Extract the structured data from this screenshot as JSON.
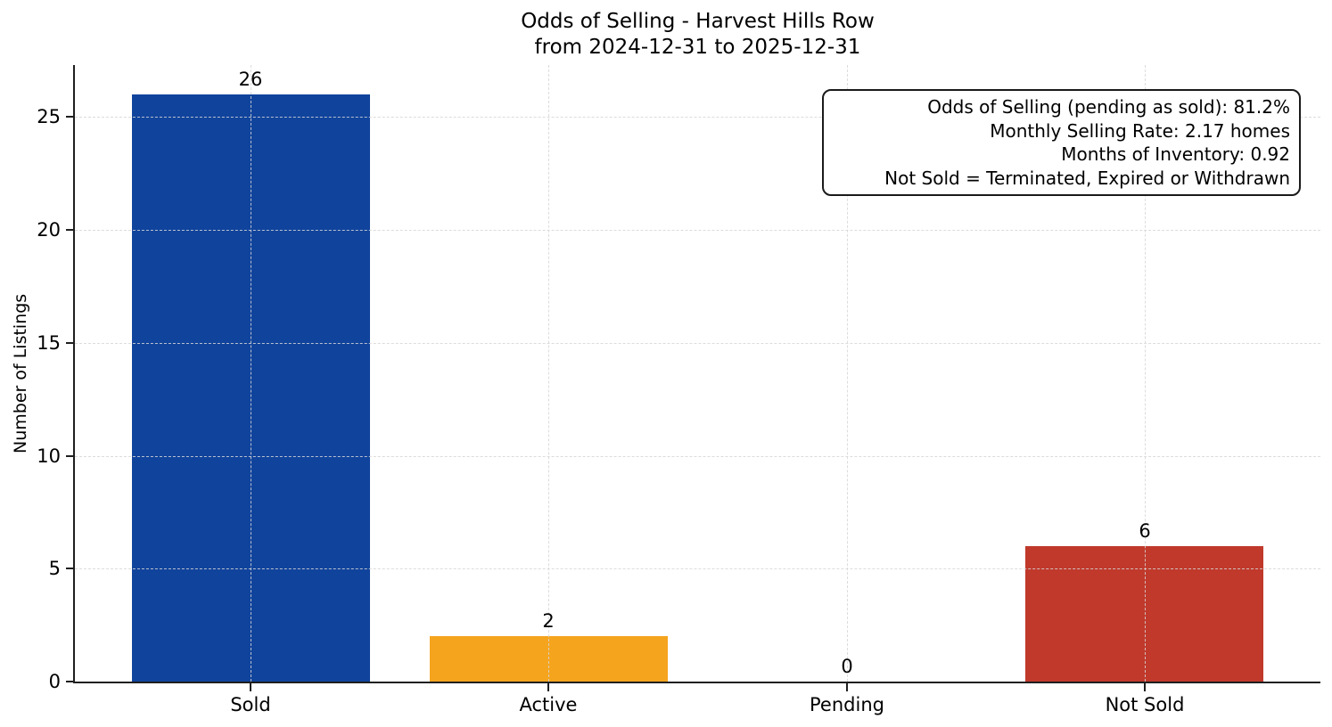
{
  "figure": {
    "title": "Odds of Selling - Harvest Hills Row",
    "subtitle": "from 2024-12-31 to 2025-12-31"
  },
  "annotation": {
    "lines": [
      "Odds of Selling (pending as sold): 81.2%",
      "Monthly Selling Rate: 2.17 homes",
      "Months of Inventory: 0.92",
      "Not Sold = Terminated, Expired or Withdrawn"
    ]
  },
  "colors": {
    "sold_bar": "#10439c",
    "active_bar": "#f5a41e",
    "pending_bar": null,
    "not_sold_bar": "#c0392b",
    "axis": "#1f1f1f",
    "grid": "#d7d7d7",
    "background": "#ffffff"
  },
  "chart_data": {
    "type": "bar",
    "title": "Odds of Selling - Harvest Hills Row",
    "subtitle": "from 2024-12-31 to 2025-12-31",
    "categories": [
      "Sold",
      "Active",
      "Pending",
      "Not Sold"
    ],
    "values": [
      26,
      2,
      0,
      6
    ],
    "bar_colors": [
      "#10439c",
      "#f5a41e",
      null,
      "#c0392b"
    ],
    "value_labels": [
      "26",
      "2",
      "0",
      "6"
    ],
    "xlabel": "",
    "ylabel": "Number of Listings",
    "yticks": [
      0,
      5,
      10,
      15,
      20,
      25
    ],
    "ylim": [
      0,
      27.3
    ],
    "grid": true,
    "grid_style": "dashed",
    "legend": "none",
    "annotation_lines": [
      "Odds of Selling (pending as sold): 81.2%",
      "Monthly Selling Rate: 2.17 homes",
      "Months of Inventory: 0.92",
      "Not Sold = Terminated, Expired or Withdrawn"
    ]
  }
}
